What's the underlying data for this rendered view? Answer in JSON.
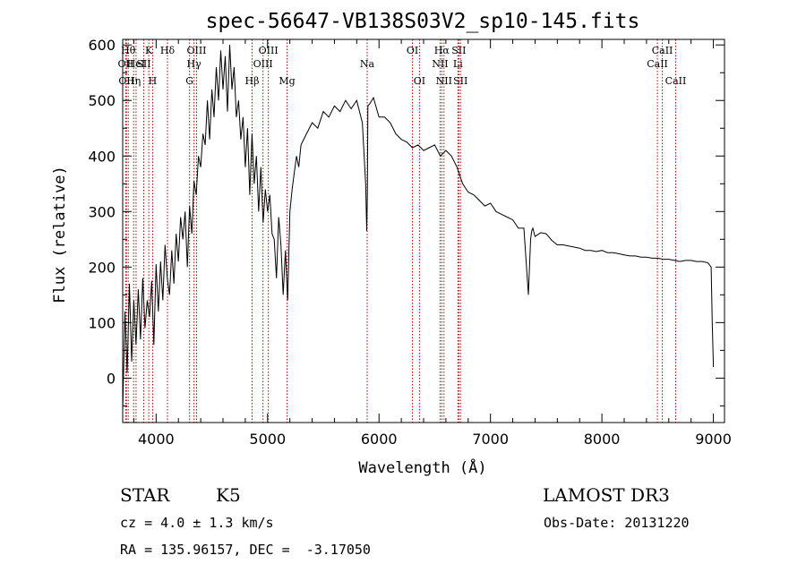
{
  "chart_data": {
    "type": "line",
    "title": "spec-56647-VB138S03V2_sp10-145.fits",
    "xlabel": "Wavelength (Å)",
    "ylabel": "Flux (relative)",
    "xlim": [
      3700,
      9100
    ],
    "ylim": [
      -80,
      610
    ],
    "xticks": [
      4000,
      5000,
      6000,
      7000,
      8000,
      9000
    ],
    "yticks": [
      0,
      100,
      200,
      300,
      400,
      500,
      600
    ],
    "xtick_labels": [
      "4000",
      "5000",
      "6000",
      "7000",
      "8000",
      "9000"
    ],
    "ytick_labels": [
      "0",
      "100",
      "200",
      "300",
      "400",
      "500",
      "600"
    ],
    "grid": false,
    "line_color": "#000000",
    "marker_color": "#b00000",
    "series": [
      {
        "x": [
          3700,
          3720,
          3740,
          3760,
          3780,
          3800,
          3820,
          3840,
          3860,
          3880,
          3900,
          3920,
          3940,
          3960,
          3980,
          4000,
          4020,
          4040,
          4060,
          4080,
          4100,
          4120,
          4140,
          4160,
          4180,
          4200,
          4220,
          4240,
          4260,
          4280,
          4300,
          4320,
          4340,
          4360,
          4380,
          4400,
          4420,
          4440,
          4460,
          4480,
          4500,
          4520,
          4540,
          4560,
          4580,
          4600,
          4620,
          4640,
          4660,
          4680,
          4700,
          4720,
          4740,
          4760,
          4780,
          4800,
          4820,
          4840,
          4860,
          4880,
          4900,
          4920,
          4940,
          4960,
          4980,
          5000,
          5020,
          5040,
          5060,
          5080,
          5100,
          5120,
          5140,
          5160,
          5180,
          5200,
          5220,
          5240,
          5260,
          5280,
          5300,
          5350,
          5400,
          5450,
          5500,
          5550,
          5600,
          5650,
          5700,
          5750,
          5800,
          5850,
          5880,
          5890,
          5895,
          5900,
          5920,
          5950,
          6000,
          6050,
          6100,
          6150,
          6200,
          6250,
          6300,
          6350,
          6400,
          6450,
          6500,
          6550,
          6600,
          6650,
          6700,
          6750,
          6800,
          6850,
          6900,
          6950,
          7000,
          7050,
          7100,
          7150,
          7200,
          7250,
          7300,
          7340,
          7360,
          7370,
          7380,
          7400,
          7450,
          7500,
          7550,
          7600,
          7650,
          7700,
          7750,
          7800,
          7850,
          7900,
          7950,
          8000,
          8050,
          8100,
          8150,
          8200,
          8250,
          8300,
          8350,
          8400,
          8450,
          8500,
          8550,
          8600,
          8650,
          8700,
          8750,
          8800,
          8850,
          8900,
          8950,
          8980,
          8990,
          9000
        ],
        "y": [
          -60,
          120,
          10,
          170,
          30,
          140,
          60,
          160,
          70,
          180,
          90,
          140,
          110,
          175,
          60,
          205,
          120,
          210,
          140,
          240,
          180,
          150,
          230,
          170,
          260,
          210,
          290,
          250,
          300,
          200,
          310,
          260,
          355,
          330,
          400,
          380,
          440,
          420,
          500,
          430,
          520,
          470,
          560,
          500,
          590,
          520,
          580,
          480,
          600,
          520,
          560,
          470,
          500,
          430,
          470,
          380,
          450,
          330,
          440,
          350,
          400,
          300,
          380,
          280,
          340,
          300,
          330,
          260,
          250,
          180,
          290,
          240,
          150,
          230,
          140,
          300,
          340,
          370,
          400,
          380,
          420,
          440,
          460,
          450,
          480,
          470,
          490,
          480,
          500,
          485,
          500,
          460,
          350,
          265,
          330,
          490,
          495,
          505,
          470,
          470,
          460,
          440,
          430,
          425,
          415,
          420,
          410,
          415,
          420,
          400,
          410,
          400,
          380,
          350,
          335,
          330,
          320,
          310,
          315,
          300,
          295,
          290,
          285,
          270,
          270,
          150,
          250,
          265,
          270,
          255,
          262,
          260,
          248,
          240,
          240,
          238,
          236,
          234,
          230,
          230,
          228,
          230,
          226,
          226,
          224,
          222,
          220,
          220,
          218,
          218,
          216,
          216,
          214,
          214,
          212,
          210,
          212,
          212,
          210,
          210,
          208,
          200,
          100,
          20
        ]
      }
    ],
    "line_markers": [
      {
        "x": 3727,
        "label": "OII",
        "row": 1
      },
      {
        "x": 3734,
        "label": "OII",
        "row": 2
      },
      {
        "x": 3750,
        "label": "Hθ",
        "row": 0
      },
      {
        "x": 3798,
        "label": "Hη",
        "row": 2
      },
      {
        "x": 3820,
        "label": "HeI",
        "row": 1
      },
      {
        "x": 3889,
        "label": "SII",
        "row": 1
      },
      {
        "x": 3934,
        "label": "K",
        "row": 0
      },
      {
        "x": 3969,
        "label": "H",
        "row": 2
      },
      {
        "x": 4102,
        "label": "Hδ",
        "row": 0
      },
      {
        "x": 4300,
        "label": "G",
        "row": 2
      },
      {
        "x": 4340,
        "label": "Hγ",
        "row": 1
      },
      {
        "x": 4363,
        "label": "OIII",
        "row": 0
      },
      {
        "x": 4861,
        "label": "Hβ",
        "row": 2
      },
      {
        "x": 4959,
        "label": "OIII",
        "row": 1
      },
      {
        "x": 5007,
        "label": "OIII",
        "row": 0
      },
      {
        "x": 5175,
        "label": "Mg",
        "row": 2
      },
      {
        "x": 5894,
        "label": "Na",
        "row": 1
      },
      {
        "x": 6300,
        "label": "OI",
        "row": 0
      },
      {
        "x": 6363,
        "label": "OI",
        "row": 2
      },
      {
        "x": 6548,
        "label": "NII",
        "row": 1
      },
      {
        "x": 6563,
        "label": "Hα",
        "row": 0
      },
      {
        "x": 6583,
        "label": "NII",
        "row": 2
      },
      {
        "x": 6708,
        "label": "Li",
        "row": 1
      },
      {
        "x": 6716,
        "label": "SII",
        "row": 0
      },
      {
        "x": 6731,
        "label": "SII",
        "row": 2
      },
      {
        "x": 8498,
        "label": "CaII",
        "row": 1
      },
      {
        "x": 8542,
        "label": "CaII",
        "row": 0
      },
      {
        "x": 8662,
        "label": "CaII",
        "row": 2
      }
    ]
  },
  "info": {
    "class_label": "STAR",
    "subclass_label": "K5",
    "survey": "LAMOST DR3",
    "cz": "cz = 4.0 ± 1.3 km/s",
    "obs_date": "Obs-Date: 20131220",
    "coords": "RA = 135.96157, DEC =  -3.17050"
  }
}
